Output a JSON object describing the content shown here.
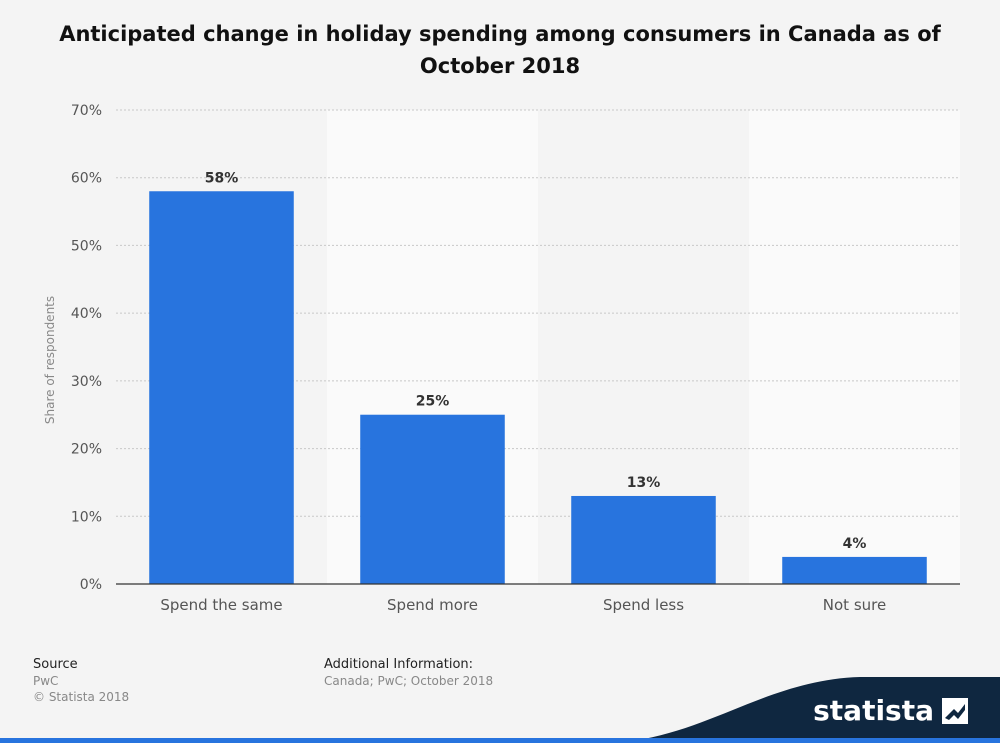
{
  "title": "Anticipated change in holiday spending among consumers in Canada as of October 2018",
  "chart_data": {
    "type": "bar",
    "title": "Anticipated change in holiday spending among consumers in Canada as of October 2018",
    "categories": [
      "Spend the same",
      "Spend more",
      "Spend less",
      "Not sure"
    ],
    "values": [
      58,
      25,
      13,
      4
    ],
    "value_labels": [
      "58%",
      "25%",
      "13%",
      "4%"
    ],
    "xlabel": "",
    "ylabel": "Share of respondents",
    "ylim": [
      0,
      70
    ],
    "yticks": [
      0,
      10,
      20,
      30,
      40,
      50,
      60,
      70
    ],
    "ytick_labels": [
      "0%",
      "10%",
      "20%",
      "30%",
      "40%",
      "50%",
      "60%",
      "70%"
    ],
    "grid": true,
    "bar_color": "#2874de"
  },
  "footer": {
    "source_heading": "Source",
    "source_name": "PwC",
    "copyright": "© Statista 2018",
    "additional_heading": "Additional Information:",
    "additional_text": "Canada; PwC; October 2018"
  },
  "brand": {
    "name": "statista",
    "band_color": "#0f2740",
    "accent_color": "#2874de"
  }
}
